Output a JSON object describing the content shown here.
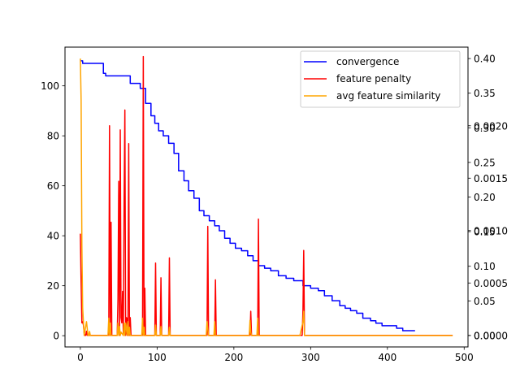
{
  "chart_data": {
    "type": "line",
    "xlim": [
      -20,
      505
    ],
    "xticks": [
      0,
      100,
      200,
      300,
      400,
      500
    ],
    "xtick_labels": [
      "0",
      "100",
      "200",
      "300",
      "400",
      "500"
    ],
    "left_axis": {
      "ylim": [
        -4.5,
        115.5
      ],
      "ticks": [
        0,
        20,
        40,
        60,
        80,
        100
      ],
      "tick_labels": [
        "0",
        "20",
        "40",
        "60",
        "80",
        "100"
      ]
    },
    "right_axis_penalty": {
      "ylim": [
        -0.00011,
        0.00275
      ],
      "ticks": [
        0.0,
        0.0005,
        0.001,
        0.0015,
        0.002
      ],
      "tick_labels": [
        "0.0000",
        "0.0005",
        "0.0010",
        "0.0015",
        "0.0020"
      ]
    },
    "right_axis_similarity": {
      "ylim": [
        -0.0165,
        0.4165
      ],
      "ticks": [
        0.0,
        0.05,
        0.1,
        0.15,
        0.2,
        0.25,
        0.3,
        0.35,
        0.4
      ],
      "tick_labels": [
        "0.00",
        "0.05",
        "0.10",
        "0.15",
        "0.20",
        "0.25",
        "0.30",
        "0.35",
        "0.40"
      ]
    },
    "legend": {
      "position": "top-right",
      "entries": [
        "convergence",
        "feature penalty",
        "avg feature similarity"
      ]
    },
    "grid": false,
    "series": [
      {
        "name": "convergence",
        "color": "#0000ff",
        "axis": "left",
        "step": true,
        "x": [
          0,
          3,
          30,
          33,
          65,
          78,
          85,
          92,
          97,
          102,
          108,
          115,
          122,
          128,
          135,
          141,
          148,
          155,
          161,
          168,
          175,
          181,
          188,
          195,
          202,
          210,
          218,
          225,
          232,
          240,
          248,
          258,
          268,
          278,
          290,
          300,
          310,
          318,
          328,
          338,
          345,
          352,
          360,
          368,
          378,
          385,
          393,
          400,
          412,
          420,
          432,
          436
        ],
        "y": [
          110,
          109,
          105,
          104,
          101,
          99,
          93,
          88,
          85,
          82,
          80,
          77,
          73,
          66,
          62,
          58,
          55,
          50,
          48,
          46,
          44,
          42,
          39,
          37,
          35,
          34,
          32,
          30,
          28,
          27,
          26,
          24,
          23,
          22,
          20,
          19,
          18,
          16,
          14,
          12,
          11,
          10,
          9,
          7,
          6,
          5,
          4,
          4,
          3,
          2,
          2,
          2
        ]
      },
      {
        "name": "feature penalty",
        "color": "#ff0000",
        "axis": "right",
        "x": [
          0,
          1,
          2,
          3,
          4,
          5,
          6,
          7,
          8,
          9,
          12,
          37,
          38,
          39,
          40,
          41,
          42,
          43,
          48,
          49,
          50,
          51,
          52,
          53,
          54,
          55,
          56,
          57,
          58,
          59,
          60,
          61,
          62,
          63,
          64,
          65,
          66,
          80,
          81,
          82,
          83,
          84,
          85,
          86,
          97,
          98,
          99,
          100,
          104,
          105,
          106,
          115,
          116,
          117,
          165,
          166,
          167,
          175,
          176,
          177,
          221,
          222,
          223,
          231,
          232,
          233,
          289,
          290,
          291,
          292,
          293,
          485
        ],
        "y": [
          0.00097,
          0.0005,
          0.00012,
          0.00013,
          0.0001,
          2e-05,
          0.0,
          0.0,
          4e-05,
          0.0,
          0.0,
          0.0,
          0.002,
          0.0,
          0.00108,
          0.0,
          0.0,
          0.0,
          0.0,
          0.00035,
          0.00147,
          0.0,
          0.00196,
          0.00017,
          0.00012,
          0.00042,
          0.0,
          0.0013,
          0.00215,
          0.0,
          0.00017,
          0.00016,
          0.0,
          0.00183,
          0.0,
          0.00017,
          0.0,
          0.0,
          0.0,
          0.00266,
          0.0,
          0.00045,
          0.0,
          0.0,
          0.0,
          0.00069,
          0.0,
          0.0,
          0.0,
          0.00055,
          0.0,
          0.0,
          0.00074,
          0.0,
          0.0,
          0.00104,
          0.0,
          0.0,
          0.00053,
          0.0,
          0.0,
          0.00023,
          0.0,
          0.0,
          0.00111,
          0.0,
          0.0,
          0.00024,
          0.00081,
          0.0,
          0.0,
          0.0
        ]
      },
      {
        "name": "avg feature similarity",
        "color": "#ffa500",
        "axis": "right_outer",
        "x": [
          0,
          1,
          2,
          3,
          5,
          8,
          10,
          11,
          12,
          13,
          36,
          37,
          38,
          39,
          40,
          41,
          48,
          49,
          50,
          51,
          52,
          53,
          56,
          57,
          58,
          59,
          61,
          62,
          63,
          64,
          65,
          80,
          81,
          82,
          83,
          84,
          97,
          98,
          99,
          104,
          105,
          106,
          115,
          116,
          117,
          164,
          165,
          166,
          167,
          174,
          175,
          176,
          177,
          220,
          221,
          222,
          223,
          230,
          231,
          232,
          233,
          286,
          288,
          290,
          291,
          292,
          293,
          294,
          485
        ],
        "y": [
          0.4,
          0.34,
          0.13,
          0.04,
          0.0,
          0.02,
          0.0,
          0.0,
          0.006,
          0.0,
          0.0,
          0.025,
          0.0,
          0.018,
          0.0,
          0.0,
          0.0,
          0.018,
          0.0,
          0.013,
          0.0,
          0.005,
          0.0,
          0.018,
          0.0,
          0.018,
          0.0,
          0.02,
          0.0,
          0.012,
          0.0,
          0.0,
          0.025,
          0.0,
          0.012,
          0.0,
          0.0,
          0.015,
          0.0,
          0.0,
          0.013,
          0.0,
          0.0,
          0.012,
          0.0,
          0.0,
          0.02,
          0.01,
          0.0,
          0.0,
          0.02,
          0.0,
          0.0,
          0.0,
          0.022,
          0.005,
          0.0,
          0.0,
          0.025,
          0.0,
          0.0,
          0.0,
          0.01,
          0.02,
          0.035,
          0.0,
          0.0,
          0.0,
          0.0
        ]
      }
    ]
  }
}
